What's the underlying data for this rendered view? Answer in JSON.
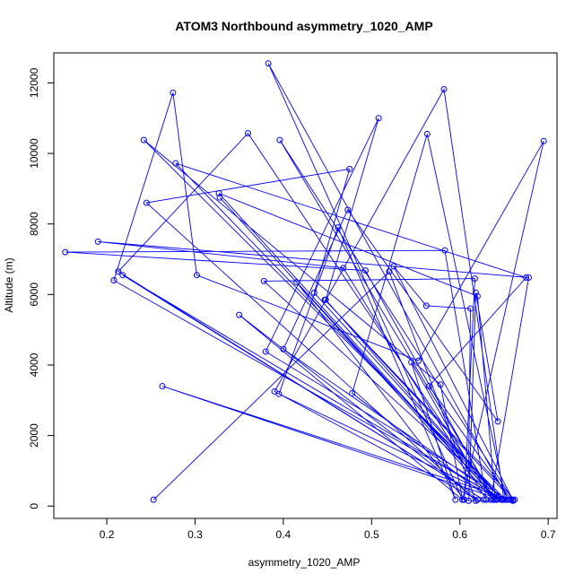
{
  "chart_data": {
    "type": "line",
    "title": "ATOM3 Northbound asymmetry_1020_AMP",
    "xlabel": "asymmetry_1020_AMP",
    "ylabel": "Altitude (m)",
    "xlim": [
      0.14,
      0.71
    ],
    "ylim": [
      -350,
      12850
    ],
    "xticks": [
      0.2,
      0.3,
      0.4,
      0.5,
      0.6,
      0.7
    ],
    "xtick_labels": [
      "0.2",
      "0.3",
      "0.4",
      "0.5",
      "0.6",
      "0.7"
    ],
    "yticks": [
      0,
      2000,
      4000,
      6000,
      8000,
      10000,
      12000
    ],
    "ytick_labels": [
      "0",
      "2000",
      "4000",
      "6000",
      "8000",
      "10000",
      "12000"
    ],
    "grid": false,
    "line_color": "#0000ff",
    "marker": "open-circle",
    "series": [
      {
        "points": [
          [
            0.253,
            180
          ],
          [
            0.52,
            6650
          ],
          [
            0.618,
            150
          ],
          [
            0.245,
            8600
          ],
          [
            0.475,
            9560
          ],
          [
            0.435,
            6050
          ],
          [
            0.648,
            180
          ],
          [
            0.208,
            6400
          ],
          [
            0.275,
            11720
          ],
          [
            0.302,
            6550
          ],
          [
            0.553,
            4120
          ],
          [
            0.695,
            10350
          ],
          [
            0.603,
            180
          ],
          [
            0.383,
            12550
          ],
          [
            0.655,
            180
          ],
          [
            0.38,
            4380
          ],
          [
            0.508,
            11000
          ],
          [
            0.448,
            5850
          ],
          [
            0.648,
            180
          ],
          [
            0.278,
            9720
          ],
          [
            0.675,
            6480
          ],
          [
            0.565,
            3400
          ],
          [
            0.658,
            180
          ],
          [
            0.263,
            3400
          ],
          [
            0.647,
            180
          ],
          [
            0.218,
            6550
          ],
          [
            0.627,
            180
          ],
          [
            0.213,
            6650
          ],
          [
            0.36,
            10570
          ],
          [
            0.638,
            180
          ],
          [
            0.328,
            8750
          ],
          [
            0.638,
            180
          ],
          [
            0.493,
            6680
          ],
          [
            0.153,
            7200
          ],
          [
            0.583,
            7250
          ],
          [
            0.63,
            180
          ],
          [
            0.468,
            6750
          ],
          [
            0.19,
            7500
          ],
          [
            0.678,
            6480
          ],
          [
            0.635,
            180
          ],
          [
            0.478,
            3200
          ],
          [
            0.563,
            10550
          ],
          [
            0.652,
            180
          ],
          [
            0.242,
            10380
          ],
          [
            0.578,
            3450
          ],
          [
            0.603,
            180
          ],
          [
            0.35,
            5420
          ],
          [
            0.62,
            180
          ],
          [
            0.39,
            3250
          ],
          [
            0.582,
            11820
          ],
          [
            0.65,
            180
          ],
          [
            0.378,
            6380
          ],
          [
            0.617,
            6450
          ],
          [
            0.605,
            180
          ],
          [
            0.415,
            6350
          ],
          [
            0.642,
            180
          ],
          [
            0.327,
            8870
          ],
          [
            0.62,
            5950
          ],
          [
            0.64,
            180
          ],
          [
            0.396,
            10380
          ],
          [
            0.66,
            180
          ],
          [
            0.525,
            6800
          ],
          [
            0.562,
            5680
          ],
          [
            0.612,
            5600
          ],
          [
            0.61,
            1200
          ],
          [
            0.545,
            4080
          ],
          [
            0.595,
            180
          ],
          [
            0.462,
            7900
          ],
          [
            0.395,
            3180
          ],
          [
            0.648,
            180
          ],
          [
            0.4,
            4450
          ],
          [
            0.473,
            8400
          ],
          [
            0.643,
            2400
          ],
          [
            0.618,
            6050
          ],
          [
            0.61,
            150
          ],
          [
            0.66,
            150
          ],
          [
            0.447,
            5850
          ],
          [
            0.662,
            180
          ]
        ]
      }
    ]
  }
}
